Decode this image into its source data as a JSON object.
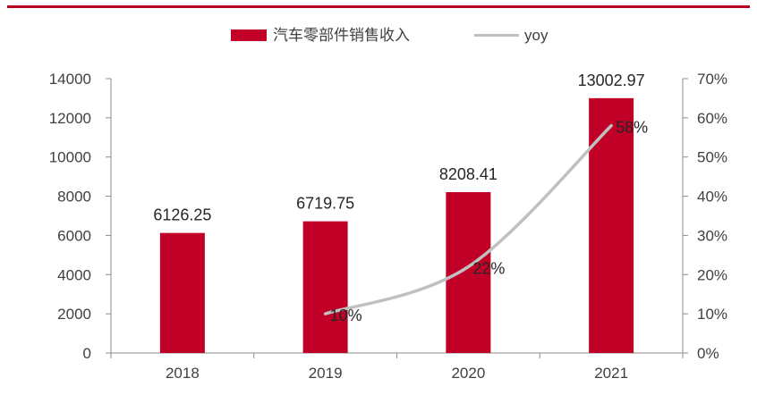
{
  "chart_data": {
    "type": "bar",
    "categories": [
      "2018",
      "2019",
      "2020",
      "2021"
    ],
    "series": [
      {
        "name": "汽车零部件销售收入",
        "type": "bar",
        "axis": "left",
        "color": "#c00027",
        "values": [
          6126.25,
          6719.75,
          8208.41,
          13002.97
        ],
        "labels": [
          "6126.25",
          "6719.75",
          "8208.41",
          "13002.97"
        ]
      },
      {
        "name": "yoy",
        "type": "line",
        "axis": "right",
        "color": "#c0c0c0",
        "values": [
          null,
          0.1,
          0.22,
          0.58
        ],
        "labels": [
          "",
          "10%",
          "22%",
          "58%"
        ]
      }
    ],
    "y_left": {
      "range": [
        0,
        14000
      ],
      "ticks": [
        0,
        2000,
        4000,
        6000,
        8000,
        10000,
        12000,
        14000
      ],
      "tick_labels": [
        "0",
        "2000",
        "4000",
        "6000",
        "8000",
        "10000",
        "12000",
        "14000"
      ]
    },
    "y_right": {
      "range": [
        0,
        0.7
      ],
      "ticks": [
        0,
        0.1,
        0.2,
        0.3,
        0.4,
        0.5,
        0.6,
        0.7
      ],
      "tick_labels": [
        "0%",
        "10%",
        "20%",
        "30%",
        "40%",
        "50%",
        "60%",
        "70%"
      ]
    },
    "legend": "top-center",
    "grid": false,
    "title": "",
    "xlabel": "",
    "ylabel": ""
  }
}
